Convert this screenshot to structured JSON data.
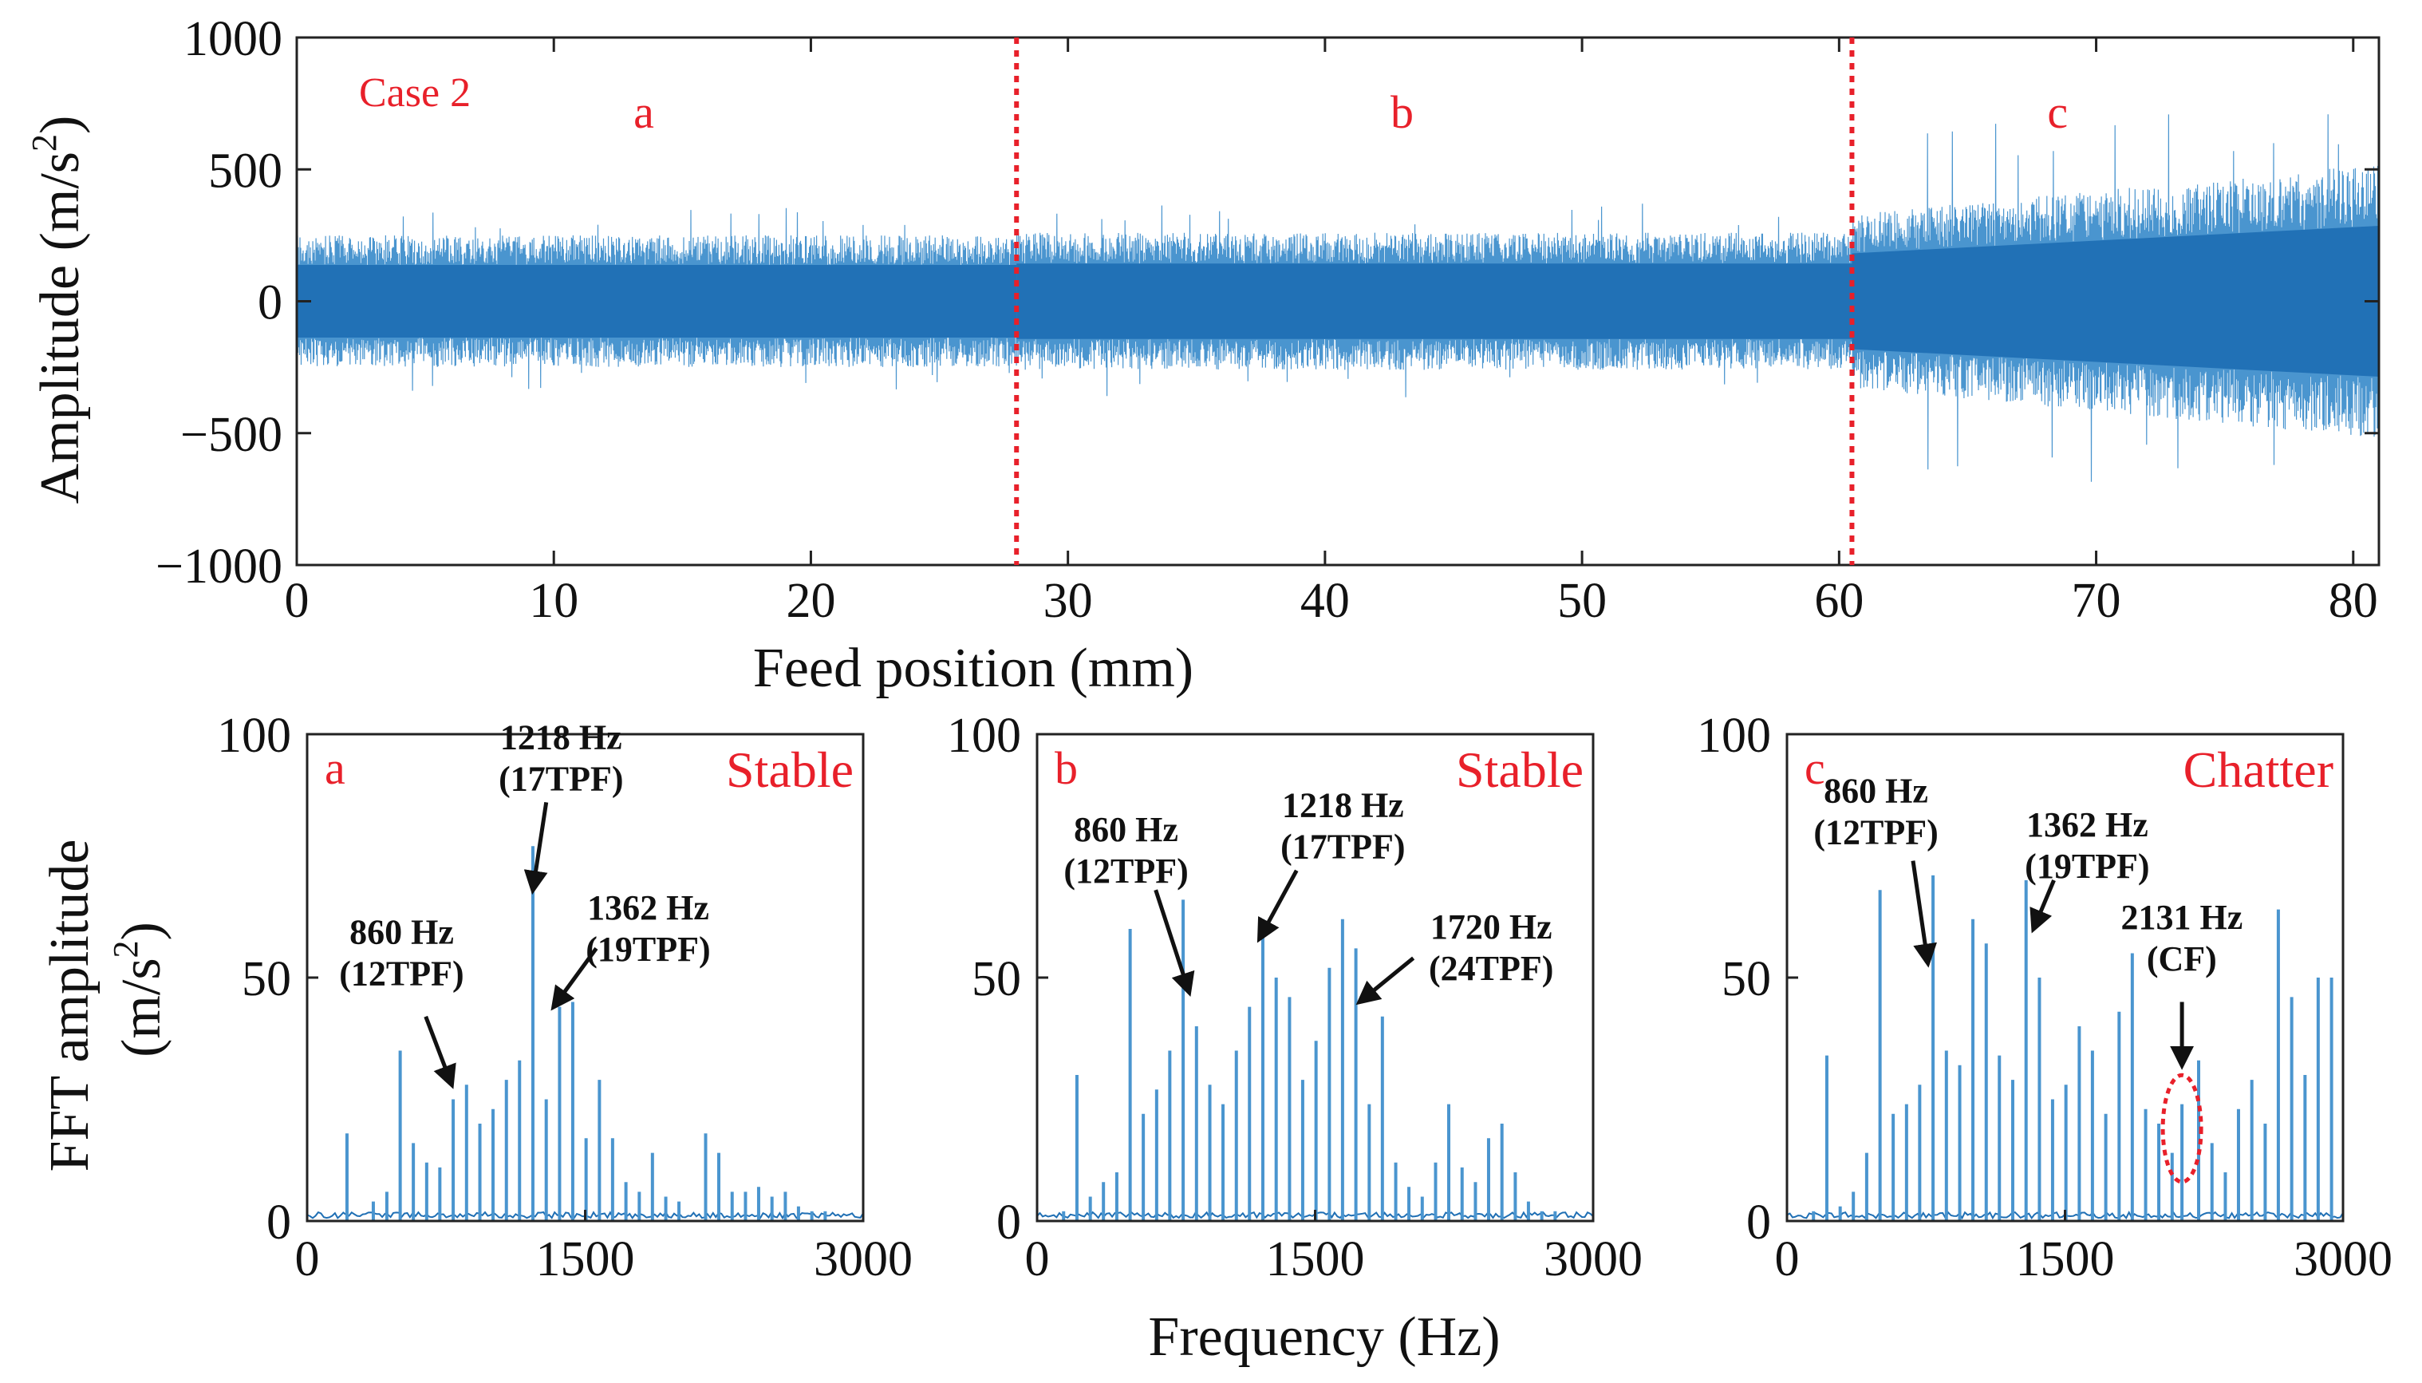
{
  "colors": {
    "signal": "#1f6fb4",
    "signal_light": "#4a95cf",
    "annotation_red": "#e8202a",
    "axis": "#222222",
    "text": "#111111"
  },
  "chart_data": [
    {
      "type": "line",
      "name": "time-signal",
      "description_label": "Case 2",
      "xlabel": "Feed position (mm)",
      "ylabel_main": "Amplitude (m/s",
      "ylabel_sup": "2",
      "ylabel_tail": ")",
      "xlim": [
        0,
        81
      ],
      "ylim": [
        -1000,
        1000
      ],
      "xticks": [
        0,
        10,
        20,
        30,
        40,
        50,
        60,
        70,
        80
      ],
      "yticks": [
        1000,
        500,
        0,
        -500,
        -1000
      ],
      "ytick_labels": [
        "1000",
        "500",
        "0",
        "−500",
        "−1000"
      ],
      "segments": [
        {
          "label": "a",
          "x_start": 0,
          "x_end": 28,
          "envelope": 250,
          "spike": 360
        },
        {
          "label": "b",
          "x_start": 28,
          "x_end": 60.5,
          "envelope": 260,
          "spike": 380
        },
        {
          "label": "c",
          "x_start": 60.5,
          "x_end": 81,
          "envelope_start": 330,
          "envelope_end": 520,
          "spike": 720
        }
      ],
      "boundaries": [
        28,
        60.5
      ],
      "region_labels": [
        {
          "text": "a",
          "x": 13.5
        },
        {
          "text": "b",
          "x": 43
        },
        {
          "text": "c",
          "x": 68.5
        }
      ]
    },
    {
      "type": "bar",
      "name": "fft-a",
      "panel_label": "a",
      "state_label": "Stable",
      "xlim": [
        0,
        3000
      ],
      "ylim": [
        0,
        100
      ],
      "xticks": [
        0,
        1500,
        3000
      ],
      "yticks": [
        0,
        50,
        100
      ],
      "peaks": [
        {
          "f": 215,
          "v": 18
        },
        {
          "f": 357,
          "v": 4
        },
        {
          "f": 430,
          "v": 6
        },
        {
          "f": 502,
          "v": 35
        },
        {
          "f": 573,
          "v": 16
        },
        {
          "f": 645,
          "v": 12
        },
        {
          "f": 716,
          "v": 11
        },
        {
          "f": 788,
          "v": 25
        },
        {
          "f": 860,
          "v": 28
        },
        {
          "f": 932,
          "v": 20
        },
        {
          "f": 1003,
          "v": 23
        },
        {
          "f": 1075,
          "v": 29
        },
        {
          "f": 1146,
          "v": 33
        },
        {
          "f": 1218,
          "v": 77
        },
        {
          "f": 1290,
          "v": 25
        },
        {
          "f": 1362,
          "v": 44
        },
        {
          "f": 1433,
          "v": 45
        },
        {
          "f": 1505,
          "v": 17
        },
        {
          "f": 1577,
          "v": 29
        },
        {
          "f": 1648,
          "v": 17
        },
        {
          "f": 1720,
          "v": 8
        },
        {
          "f": 1792,
          "v": 6
        },
        {
          "f": 1863,
          "v": 14
        },
        {
          "f": 1935,
          "v": 5
        },
        {
          "f": 2006,
          "v": 4
        },
        {
          "f": 2150,
          "v": 18
        },
        {
          "f": 2221,
          "v": 14
        },
        {
          "f": 2293,
          "v": 6
        },
        {
          "f": 2365,
          "v": 6
        },
        {
          "f": 2436,
          "v": 7
        },
        {
          "f": 2508,
          "v": 5
        },
        {
          "f": 2580,
          "v": 6
        },
        {
          "f": 2651,
          "v": 3
        },
        {
          "f": 2723,
          "v": 2
        },
        {
          "f": 2795,
          "v": 2
        }
      ],
      "annotations": [
        {
          "line1": "1218 Hz",
          "line2": "(17TPF)",
          "tx": 1370,
          "ty": 97,
          "ax": 1218,
          "ay": 68,
          "atx": 1290,
          "aty": 86
        },
        {
          "line1": "1362 Hz",
          "line2": "(19TPF)",
          "tx": 1840,
          "ty": 62,
          "ax": 1330,
          "ay": 44,
          "atx": 1560,
          "aty": 56
        },
        {
          "line1": "860 Hz",
          "line2": "(12TPF)",
          "tx": 510,
          "ty": 57,
          "ax": 780,
          "ay": 28,
          "atx": 640,
          "aty": 42
        }
      ]
    },
    {
      "type": "bar",
      "name": "fft-b",
      "panel_label": "b",
      "state_label": "Stable",
      "xlim": [
        0,
        3000
      ],
      "ylim": [
        0,
        100
      ],
      "xticks": [
        0,
        1500,
        3000
      ],
      "yticks": [
        0,
        50,
        100
      ],
      "xlabel": "Frequency (Hz)",
      "peaks": [
        {
          "f": 143,
          "v": 2
        },
        {
          "f": 215,
          "v": 30
        },
        {
          "f": 287,
          "v": 5
        },
        {
          "f": 358,
          "v": 8
        },
        {
          "f": 430,
          "v": 10
        },
        {
          "f": 502,
          "v": 60
        },
        {
          "f": 573,
          "v": 22
        },
        {
          "f": 645,
          "v": 27
        },
        {
          "f": 716,
          "v": 35
        },
        {
          "f": 788,
          "v": 66
        },
        {
          "f": 860,
          "v": 40
        },
        {
          "f": 932,
          "v": 28
        },
        {
          "f": 1003,
          "v": 24
        },
        {
          "f": 1075,
          "v": 35
        },
        {
          "f": 1146,
          "v": 44
        },
        {
          "f": 1218,
          "v": 62
        },
        {
          "f": 1290,
          "v": 50
        },
        {
          "f": 1362,
          "v": 46
        },
        {
          "f": 1433,
          "v": 29
        },
        {
          "f": 1505,
          "v": 37
        },
        {
          "f": 1577,
          "v": 52
        },
        {
          "f": 1648,
          "v": 62
        },
        {
          "f": 1720,
          "v": 56
        },
        {
          "f": 1792,
          "v": 24
        },
        {
          "f": 1863,
          "v": 42
        },
        {
          "f": 1935,
          "v": 12
        },
        {
          "f": 2006,
          "v": 7
        },
        {
          "f": 2078,
          "v": 5
        },
        {
          "f": 2150,
          "v": 12
        },
        {
          "f": 2221,
          "v": 24
        },
        {
          "f": 2293,
          "v": 11
        },
        {
          "f": 2365,
          "v": 8
        },
        {
          "f": 2436,
          "v": 17
        },
        {
          "f": 2508,
          "v": 20
        },
        {
          "f": 2580,
          "v": 10
        },
        {
          "f": 2651,
          "v": 4
        },
        {
          "f": 2723,
          "v": 2
        },
        {
          "f": 2795,
          "v": 2
        }
      ],
      "annotations": [
        {
          "line1": "860 Hz",
          "line2": "(12TPF)",
          "tx": 480,
          "ty": 78,
          "ax": 820,
          "ay": 47,
          "atx": 640,
          "aty": 68
        },
        {
          "line1": "1218 Hz",
          "line2": "(17TPF)",
          "tx": 1650,
          "ty": 83,
          "ax": 1200,
          "ay": 58,
          "atx": 1400,
          "aty": 72
        },
        {
          "line1": "1720 Hz",
          "line2": "(24TPF)",
          "tx": 2450,
          "ty": 58,
          "ax": 1740,
          "ay": 45,
          "atx": 2030,
          "aty": 54
        }
      ]
    },
    {
      "type": "bar",
      "name": "fft-c",
      "panel_label": "c",
      "state_label": "Chatter",
      "xlim": [
        0,
        3000
      ],
      "ylim": [
        0,
        100
      ],
      "xticks": [
        0,
        1500,
        3000
      ],
      "yticks": [
        0,
        50,
        100
      ],
      "peaks": [
        {
          "f": 143,
          "v": 2
        },
        {
          "f": 215,
          "v": 34
        },
        {
          "f": 287,
          "v": 3
        },
        {
          "f": 358,
          "v": 6
        },
        {
          "f": 430,
          "v": 14
        },
        {
          "f": 502,
          "v": 68
        },
        {
          "f": 573,
          "v": 22
        },
        {
          "f": 645,
          "v": 24
        },
        {
          "f": 716,
          "v": 28
        },
        {
          "f": 788,
          "v": 71
        },
        {
          "f": 860,
          "v": 35
        },
        {
          "f": 932,
          "v": 32
        },
        {
          "f": 1003,
          "v": 62
        },
        {
          "f": 1075,
          "v": 57
        },
        {
          "f": 1146,
          "v": 34
        },
        {
          "f": 1218,
          "v": 29
        },
        {
          "f": 1290,
          "v": 70
        },
        {
          "f": 1362,
          "v": 50
        },
        {
          "f": 1433,
          "v": 25
        },
        {
          "f": 1505,
          "v": 28
        },
        {
          "f": 1577,
          "v": 40
        },
        {
          "f": 1648,
          "v": 35
        },
        {
          "f": 1720,
          "v": 22
        },
        {
          "f": 1792,
          "v": 43
        },
        {
          "f": 1863,
          "v": 55
        },
        {
          "f": 1935,
          "v": 23
        },
        {
          "f": 2006,
          "v": 20
        },
        {
          "f": 2078,
          "v": 14
        },
        {
          "f": 2131,
          "v": 24
        },
        {
          "f": 2221,
          "v": 33
        },
        {
          "f": 2293,
          "v": 16
        },
        {
          "f": 2365,
          "v": 10
        },
        {
          "f": 2436,
          "v": 23
        },
        {
          "f": 2508,
          "v": 29
        },
        {
          "f": 2580,
          "v": 20
        },
        {
          "f": 2651,
          "v": 64
        },
        {
          "f": 2723,
          "v": 46
        },
        {
          "f": 2795,
          "v": 30
        },
        {
          "f": 2866,
          "v": 50
        },
        {
          "f": 2938,
          "v": 50
        }
      ],
      "annotations": [
        {
          "line1": "860 Hz",
          "line2": "(12TPF)",
          "tx": 480,
          "ty": 86,
          "ax": 760,
          "ay": 53,
          "atx": 680,
          "aty": 74
        },
        {
          "line1": "1362 Hz",
          "line2": "(19TPF)",
          "tx": 1620,
          "ty": 79,
          "ax": 1330,
          "ay": 60,
          "atx": 1440,
          "aty": 70
        },
        {
          "line1": "2131 Hz",
          "line2": "(CF)",
          "tx": 2130,
          "ty": 60,
          "ax": 2131,
          "ay": 32,
          "atx": 2131,
          "aty": 45
        }
      ],
      "highlight": {
        "f": 2131,
        "v_low": 10,
        "v_high": 28
      }
    }
  ]
}
